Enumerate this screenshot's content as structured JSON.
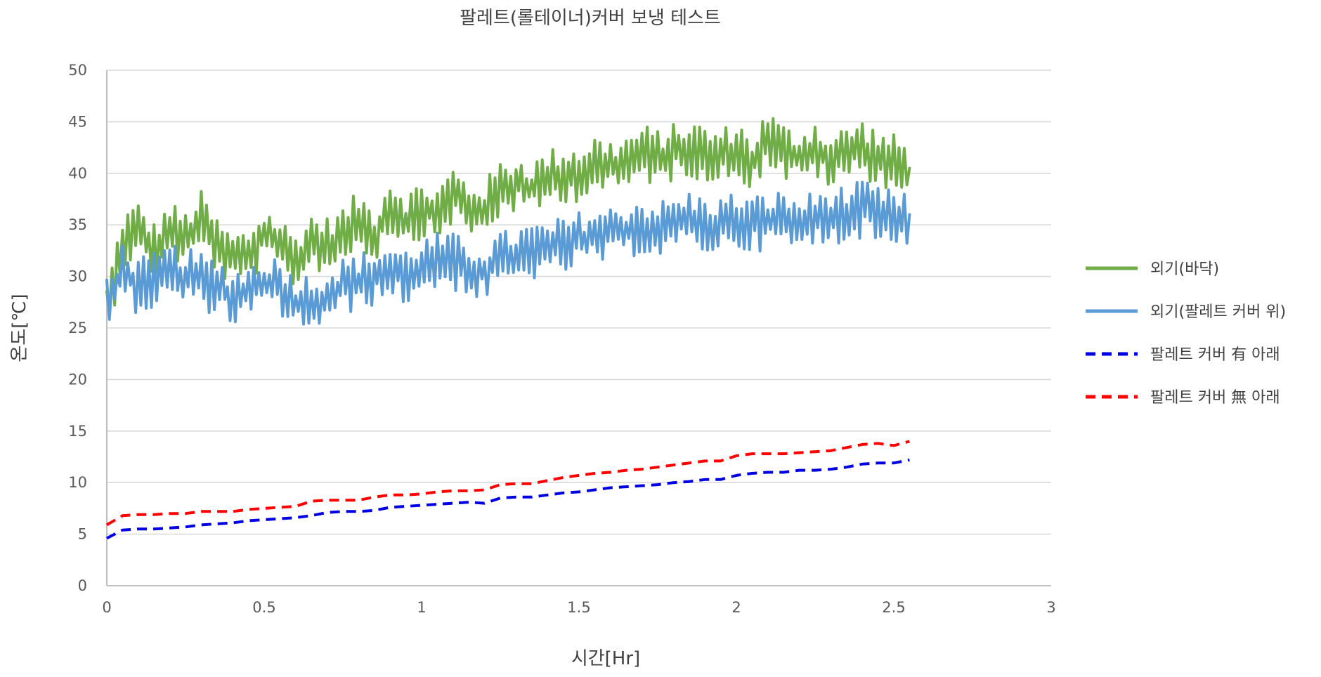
{
  "chart_data": {
    "type": "line",
    "title": "팔레트(롤테이너)커버 보냉 테스트",
    "xlabel": "시간[Hr]",
    "ylabel": "온도[℃]",
    "xlim": [
      0,
      3
    ],
    "ylim": [
      0,
      50
    ],
    "x_ticks": [
      "0",
      "0.5",
      "1",
      "1.5",
      "2",
      "2.5",
      "3"
    ],
    "y_ticks": [
      "0",
      "5",
      "10",
      "15",
      "20",
      "25",
      "30",
      "35",
      "40",
      "45",
      "50"
    ],
    "grid": "horizontal",
    "legend_position": "right",
    "series": [
      {
        "name": "외기(바닥)",
        "color": "#70ad47",
        "dash": "solid",
        "x": [
          0,
          0.05,
          0.1,
          0.15,
          0.2,
          0.25,
          0.3,
          0.35,
          0.4,
          0.45,
          0.5,
          0.55,
          0.6,
          0.65,
          0.7,
          0.75,
          0.8,
          0.85,
          0.9,
          0.95,
          1.0,
          1.05,
          1.1,
          1.15,
          1.2,
          1.25,
          1.3,
          1.35,
          1.4,
          1.45,
          1.5,
          1.55,
          1.6,
          1.65,
          1.7,
          1.75,
          1.8,
          1.85,
          1.9,
          1.95,
          2.0,
          2.05,
          2.1,
          2.15,
          2.2,
          2.25,
          2.3,
          2.35,
          2.4,
          2.45,
          2.5,
          2.55
        ],
        "y": [
          26.5,
          33.5,
          34.5,
          32.5,
          34.5,
          33.5,
          35.5,
          33.0,
          31.5,
          32.0,
          34.0,
          33.0,
          31.5,
          33.5,
          33.0,
          34.0,
          35.5,
          34.0,
          37.0,
          35.5,
          36.5,
          36.0,
          38.0,
          36.5,
          36.5,
          38.5,
          39.0,
          38.5,
          39.5,
          40.0,
          40.0,
          41.0,
          40.5,
          41.0,
          42.0,
          41.5,
          42.0,
          42.5,
          42.0,
          41.5,
          42.5,
          41.0,
          43.5,
          42.0,
          41.5,
          42.5,
          41.0,
          42.0,
          42.5,
          41.5,
          41.0,
          40.5
        ]
      },
      {
        "name": "외기(팔레트 커버 위)",
        "color": "#5b9bd5",
        "dash": "solid",
        "x": [
          0,
          0.05,
          0.1,
          0.15,
          0.2,
          0.25,
          0.3,
          0.35,
          0.4,
          0.45,
          0.5,
          0.55,
          0.6,
          0.65,
          0.7,
          0.75,
          0.8,
          0.85,
          0.9,
          0.95,
          1.0,
          1.05,
          1.1,
          1.15,
          1.2,
          1.25,
          1.3,
          1.35,
          1.4,
          1.45,
          1.5,
          1.55,
          1.6,
          1.65,
          1.7,
          1.75,
          1.8,
          1.85,
          1.9,
          1.95,
          2.0,
          2.05,
          2.1,
          2.15,
          2.2,
          2.25,
          2.3,
          2.35,
          2.4,
          2.45,
          2.5,
          2.55
        ],
        "y": [
          27.5,
          30.5,
          29.0,
          29.5,
          30.5,
          30.0,
          29.5,
          29.0,
          28.0,
          28.5,
          29.5,
          29.0,
          27.5,
          27.5,
          28.0,
          29.0,
          29.5,
          30.0,
          30.5,
          30.0,
          31.0,
          31.5,
          31.5,
          30.5,
          30.5,
          31.5,
          32.0,
          32.5,
          32.5,
          33.0,
          33.5,
          34.0,
          34.0,
          34.5,
          35.0,
          34.5,
          35.0,
          35.5,
          35.0,
          35.0,
          35.5,
          35.0,
          35.5,
          35.5,
          35.0,
          35.5,
          36.0,
          36.0,
          36.5,
          36.0,
          35.5,
          36.0
        ]
      },
      {
        "name": "팔레트 커버 有 아래",
        "color": "#0000e0",
        "dash": "dashed",
        "x": [
          0,
          0.05,
          0.1,
          0.15,
          0.2,
          0.25,
          0.3,
          0.35,
          0.4,
          0.45,
          0.5,
          0.55,
          0.6,
          0.65,
          0.7,
          0.75,
          0.8,
          0.85,
          0.9,
          0.95,
          1.0,
          1.05,
          1.1,
          1.15,
          1.2,
          1.25,
          1.3,
          1.35,
          1.4,
          1.45,
          1.5,
          1.55,
          1.6,
          1.65,
          1.7,
          1.75,
          1.8,
          1.85,
          1.9,
          1.95,
          2.0,
          2.05,
          2.1,
          2.15,
          2.2,
          2.25,
          2.3,
          2.35,
          2.4,
          2.45,
          2.5,
          2.55
        ],
        "y": [
          4.6,
          5.4,
          5.5,
          5.5,
          5.6,
          5.7,
          5.9,
          6.0,
          6.1,
          6.3,
          6.4,
          6.5,
          6.6,
          6.8,
          7.1,
          7.2,
          7.2,
          7.3,
          7.6,
          7.7,
          7.8,
          7.9,
          8.0,
          8.1,
          8.0,
          8.5,
          8.6,
          8.6,
          8.8,
          9.0,
          9.1,
          9.3,
          9.5,
          9.6,
          9.7,
          9.8,
          10.0,
          10.1,
          10.3,
          10.3,
          10.7,
          10.9,
          11.0,
          11.0,
          11.2,
          11.2,
          11.3,
          11.5,
          11.8,
          11.9,
          11.9,
          12.2
        ]
      },
      {
        "name": "팔레트 커버 無 아래",
        "color": "#ff0000",
        "dash": "dashed",
        "x": [
          0,
          0.05,
          0.1,
          0.15,
          0.2,
          0.25,
          0.3,
          0.35,
          0.4,
          0.45,
          0.5,
          0.55,
          0.6,
          0.65,
          0.7,
          0.75,
          0.8,
          0.85,
          0.9,
          0.95,
          1.0,
          1.05,
          1.1,
          1.15,
          1.2,
          1.25,
          1.3,
          1.35,
          1.4,
          1.45,
          1.5,
          1.55,
          1.6,
          1.65,
          1.7,
          1.75,
          1.8,
          1.85,
          1.9,
          1.95,
          2.0,
          2.05,
          2.1,
          2.15,
          2.2,
          2.25,
          2.3,
          2.35,
          2.4,
          2.45,
          2.5,
          2.55
        ],
        "y": [
          5.9,
          6.8,
          6.9,
          6.9,
          7.0,
          7.0,
          7.2,
          7.2,
          7.2,
          7.4,
          7.5,
          7.6,
          7.7,
          8.2,
          8.3,
          8.3,
          8.3,
          8.6,
          8.8,
          8.8,
          8.9,
          9.1,
          9.2,
          9.2,
          9.3,
          9.8,
          9.9,
          9.9,
          10.2,
          10.5,
          10.7,
          10.9,
          11.0,
          11.2,
          11.3,
          11.5,
          11.7,
          11.9,
          12.1,
          12.1,
          12.6,
          12.8,
          12.8,
          12.8,
          12.9,
          13.0,
          13.1,
          13.4,
          13.7,
          13.8,
          13.6,
          14.0
        ]
      }
    ]
  }
}
